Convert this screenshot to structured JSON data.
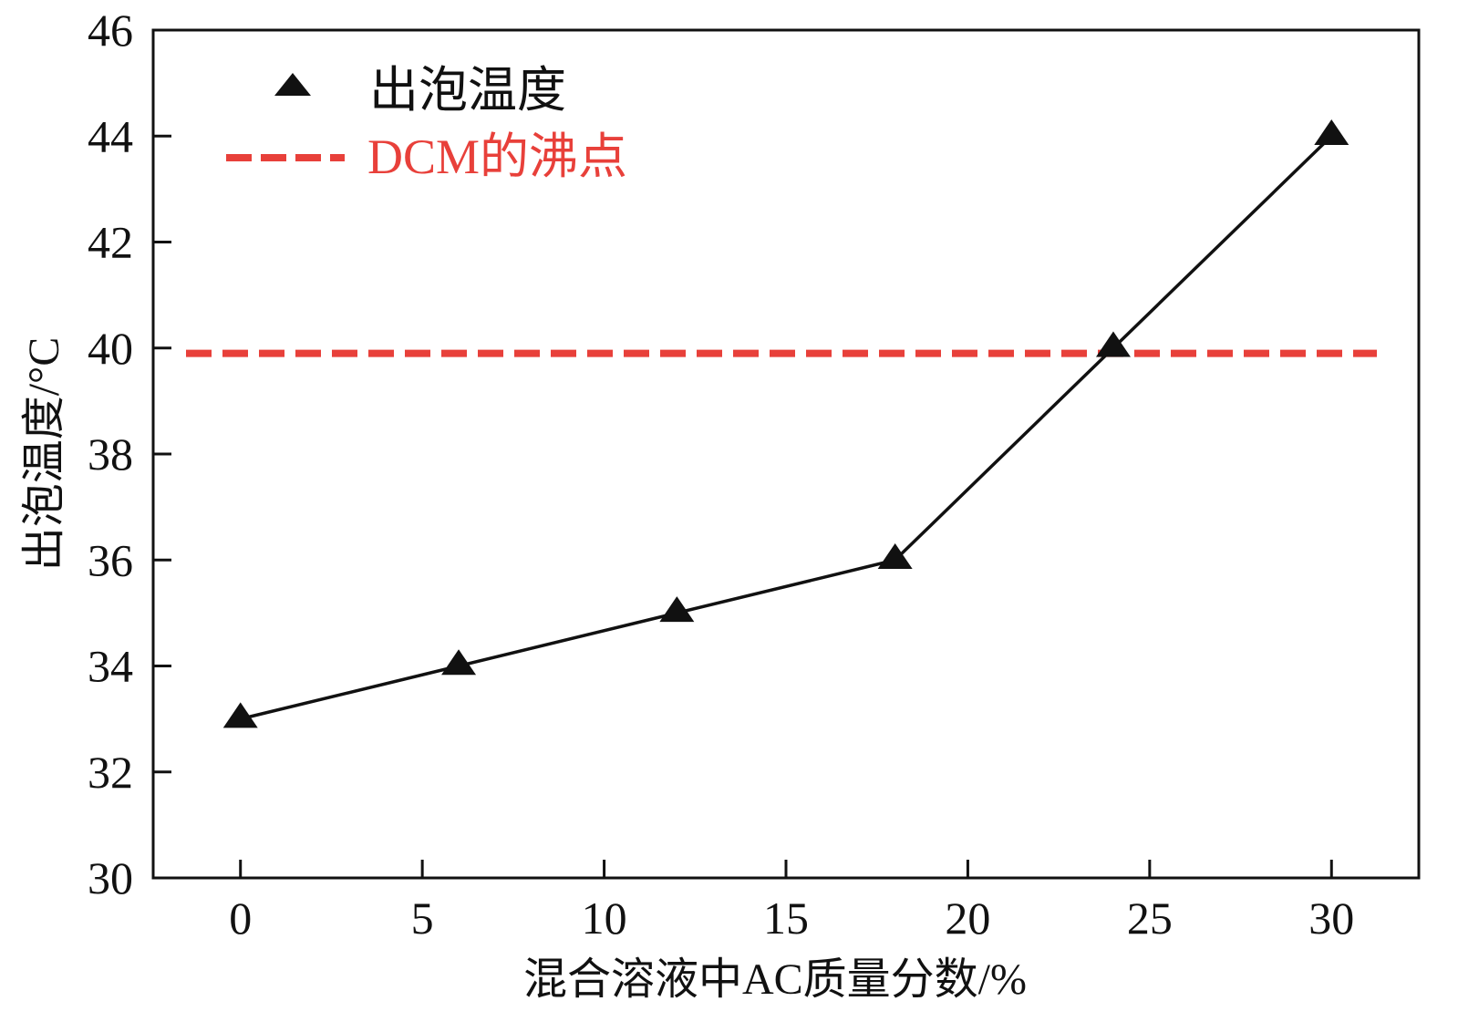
{
  "chart_data": {
    "type": "line",
    "xlabel": "混合溶液中AC质量分数/%",
    "ylabel": "出泡温度/°C",
    "xlim": [
      -2.4,
      32.4
    ],
    "ylim": [
      30,
      46
    ],
    "xticks": [
      0,
      5,
      10,
      15,
      20,
      25,
      30
    ],
    "yticks": [
      30,
      32,
      34,
      36,
      38,
      40,
      42,
      44,
      46
    ],
    "xtick_labels": [
      "0",
      "5",
      "10",
      "15",
      "20",
      "25",
      "30"
    ],
    "ytick_labels": [
      "30",
      "32",
      "34",
      "36",
      "38",
      "40",
      "42",
      "44",
      "46"
    ],
    "grid": false,
    "legend_position": "top-left",
    "series": [
      {
        "name": "出泡温度",
        "marker": "triangle",
        "color": "#111111",
        "x": [
          0,
          6,
          12,
          18,
          24,
          30
        ],
        "y": [
          33,
          34,
          35,
          36,
          40,
          44
        ]
      }
    ],
    "reference_lines": [
      {
        "name": "DCM的沸点",
        "orientation": "horizontal",
        "value": 39.9,
        "style": "dashed",
        "color": "#e8403a"
      }
    ]
  }
}
